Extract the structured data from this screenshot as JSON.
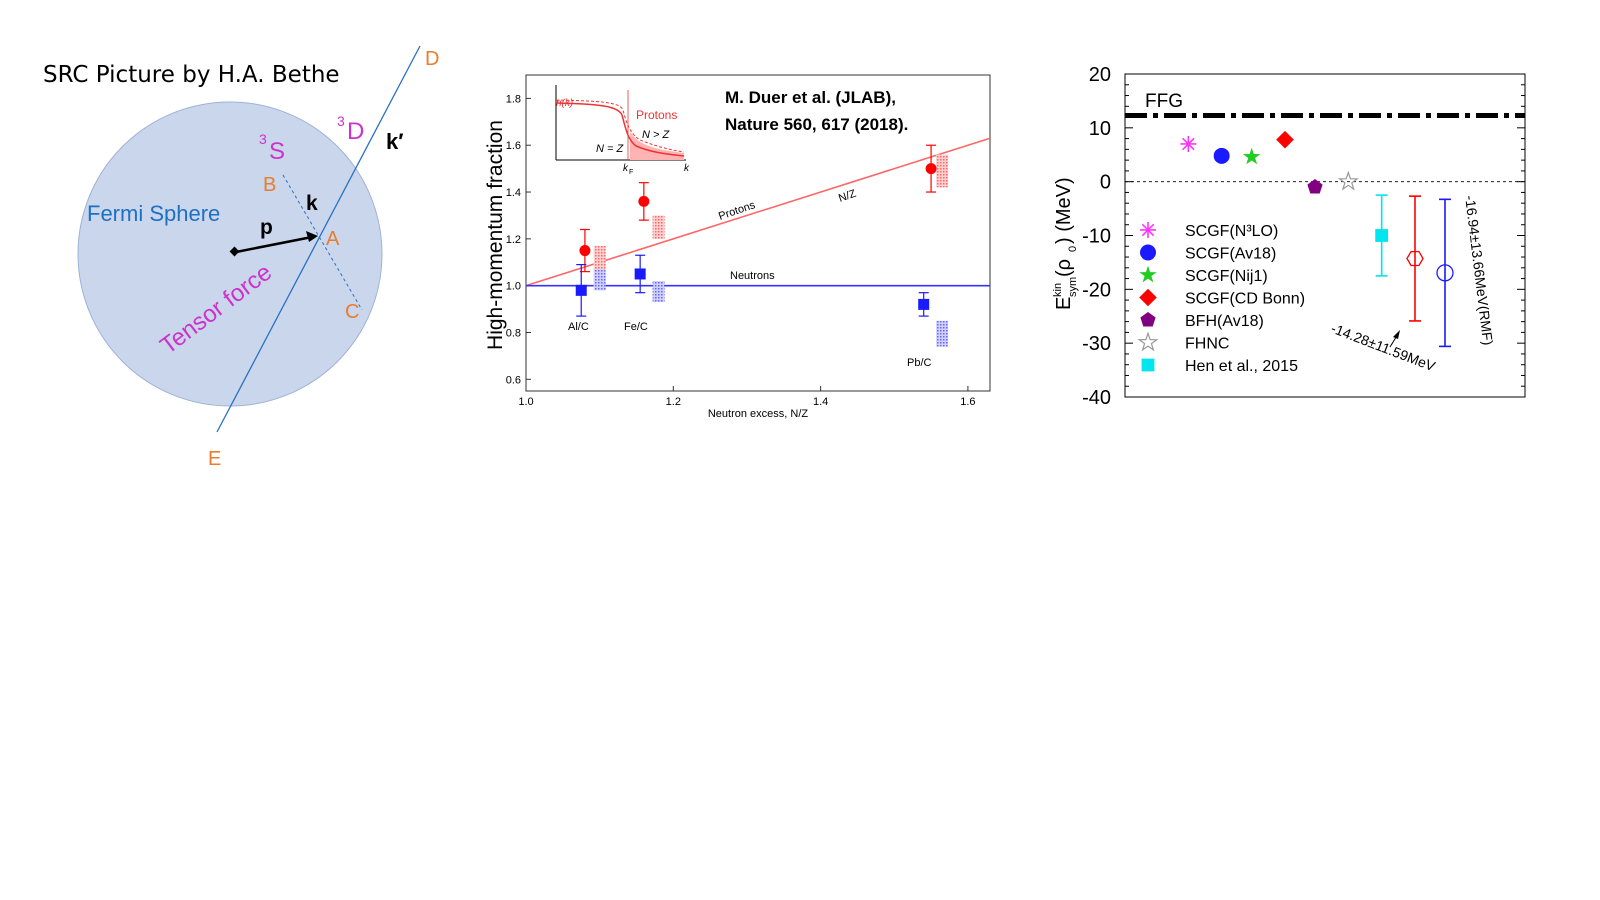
{
  "left": {
    "title": "SRC Picture by H.A. Bethe",
    "fermi_label": "Fermi Sphere",
    "tensor_label": "Tensor force",
    "s_state_sup": "3",
    "s_state": "S",
    "d_state_sup": "3",
    "d_state": "D",
    "k_label": "k",
    "kprime_label": "k′",
    "p_label": "p",
    "points": {
      "A": "A",
      "B": "B",
      "C": "C",
      "D": "D",
      "E": "E"
    },
    "colors": {
      "sphere": "#c9d6ec",
      "orange": "#e87d2c",
      "purple": "#cc33cc",
      "blue": "#1f6fc2"
    }
  },
  "middle": {
    "citation_line1": "M. Duer et al. (JLAB),",
    "citation_line2": "Nature 560, 617 (2018).",
    "ylabel": "High-momentum fraction",
    "xlabel": "Neutron excess, N/Z",
    "proton_line_label": "Protons",
    "nz_label": "N/Z",
    "neutron_line_label": "Neutrons",
    "nuclei": [
      "Al/C",
      "Fe/C",
      "Pb/C"
    ],
    "inset": {
      "nk": "n(k)",
      "protons": "Protons",
      "ngz": "N > Z",
      "neqz": "N = Z",
      "kf": "k",
      "kf_sub": "F",
      "k": "k"
    }
  },
  "right": {
    "ylabel_main": "E",
    "ylabel_sup": "kin",
    "ylabel_sub": "sym",
    "ylabel_rest": "(ρ",
    "ylabel_rho_sub": "0",
    "ylabel_units": ") (MeV)",
    "ffg_label": "FFG",
    "legend": [
      {
        "label": "SCGF(N³LO)",
        "color": "#ff33ff",
        "marker": "asterisk"
      },
      {
        "label": "SCGF(Av18)",
        "color": "#1a1aff",
        "marker": "circle"
      },
      {
        "label": "SCGF(Nij1)",
        "color": "#22cc22",
        "marker": "star"
      },
      {
        "label": "SCGF(CD Bonn)",
        "color": "#ff0000",
        "marker": "diamond"
      },
      {
        "label": "BFH(Av18)",
        "color": "#800080",
        "marker": "pentagon"
      },
      {
        "label": "FHNC",
        "color": "#999999",
        "marker": "open-star"
      },
      {
        "label": "Hen et al., 2015",
        "color": "#00e5ee",
        "marker": "square"
      }
    ],
    "annotation_red": "-14.28±11.59MeV",
    "annotation_blue": "-16.94±13.66MeV(RMF)"
  },
  "chart_data": [
    {
      "type": "scatter",
      "title": "M. Duer et al. (JLAB), Nature 560, 617 (2018).",
      "xlabel": "Neutron excess, N/Z",
      "ylabel": "High-momentum fraction",
      "xlim": [
        1.0,
        1.63
      ],
      "ylim": [
        0.55,
        1.9
      ],
      "xticks": [
        1.0,
        1.2,
        1.4,
        1.6
      ],
      "yticks": [
        0.6,
        0.8,
        1.0,
        1.2,
        1.4,
        1.6,
        1.8
      ],
      "series": [
        {
          "name": "Protons",
          "color": "#ff0000",
          "marker": "circle",
          "points": [
            {
              "x": 1.08,
              "y": 1.15,
              "yerr": 0.09
            },
            {
              "x": 1.16,
              "y": 1.36,
              "yerr": 0.08
            },
            {
              "x": 1.55,
              "y": 1.5,
              "yerr": 0.1
            }
          ]
        },
        {
          "name": "Neutrons",
          "color": "#1a1aff",
          "marker": "square",
          "points": [
            {
              "x": 1.075,
              "y": 0.98,
              "yerr": 0.11
            },
            {
              "x": 1.155,
              "y": 1.05,
              "yerr": 0.08
            },
            {
              "x": 1.54,
              "y": 0.92,
              "yerr": 0.05
            }
          ]
        },
        {
          "name": "Protons N/Z line",
          "color": "#ff6666",
          "type": "line",
          "x": [
            1.0,
            1.63
          ],
          "y": [
            1.0,
            1.63
          ]
        },
        {
          "name": "Neutrons line",
          "color": "#3333ff",
          "type": "line",
          "x": [
            1.0,
            1.63
          ],
          "y": [
            1.0,
            1.0
          ]
        }
      ],
      "bands": [
        {
          "series": "Protons",
          "color": "#ff8888",
          "bands": [
            {
              "x": 1.1,
              "y0": 0.99,
              "y1": 1.17
            },
            {
              "x": 1.18,
              "y0": 1.2,
              "y1": 1.3
            },
            {
              "x": 1.565,
              "y0": 1.42,
              "y1": 1.56
            }
          ]
        },
        {
          "series": "Neutrons",
          "color": "#8888ff",
          "bands": [
            {
              "x": 1.1,
              "y0": 0.98,
              "y1": 1.07
            },
            {
              "x": 1.18,
              "y0": 0.93,
              "y1": 1.02
            },
            {
              "x": 1.565,
              "y0": 0.74,
              "y1": 0.85
            }
          ]
        }
      ]
    },
    {
      "type": "scatter",
      "ylabel": "E_sym^kin(rho_0) (MeV)",
      "ylim": [
        -40,
        20
      ],
      "yticks": [
        20,
        10,
        0,
        -10,
        -20,
        -30,
        -40
      ],
      "xlim": [
        0,
        12
      ],
      "ffg_value": 12.3,
      "points": [
        {
          "name": "SCGF(N³LO)",
          "x": 1.9,
          "y": 7.0,
          "marker": "asterisk",
          "color": "#ff33ff"
        },
        {
          "name": "SCGF(Av18)",
          "x": 2.9,
          "y": 4.8,
          "marker": "circle",
          "color": "#1a1aff"
        },
        {
          "name": "SCGF(Nij1)",
          "x": 3.8,
          "y": 4.6,
          "marker": "star",
          "color": "#22cc22"
        },
        {
          "name": "SCGF(CD Bonn)",
          "x": 4.8,
          "y": 7.8,
          "marker": "diamond",
          "color": "#ff0000"
        },
        {
          "name": "BFH(Av18)",
          "x": 5.7,
          "y": -1.0,
          "marker": "pentagon",
          "color": "#800080"
        },
        {
          "name": "FHNC",
          "x": 6.7,
          "y": 0.0,
          "marker": "open-star",
          "color": "#999999"
        },
        {
          "name": "Hen et al., 2015",
          "x": 7.7,
          "y": -10.0,
          "yerr": 7.5,
          "marker": "square",
          "color": "#00e5ee"
        },
        {
          "name": "-14.28±11.59MeV",
          "x": 8.7,
          "y": -14.28,
          "yerr": 11.59,
          "marker": "open-hexagon",
          "color": "#ff0000"
        },
        {
          "name": "-16.94±13.66MeV(RMF)",
          "x": 9.6,
          "y": -16.94,
          "yerr": 13.66,
          "marker": "open-circle",
          "color": "#1a1aff"
        }
      ]
    }
  ]
}
